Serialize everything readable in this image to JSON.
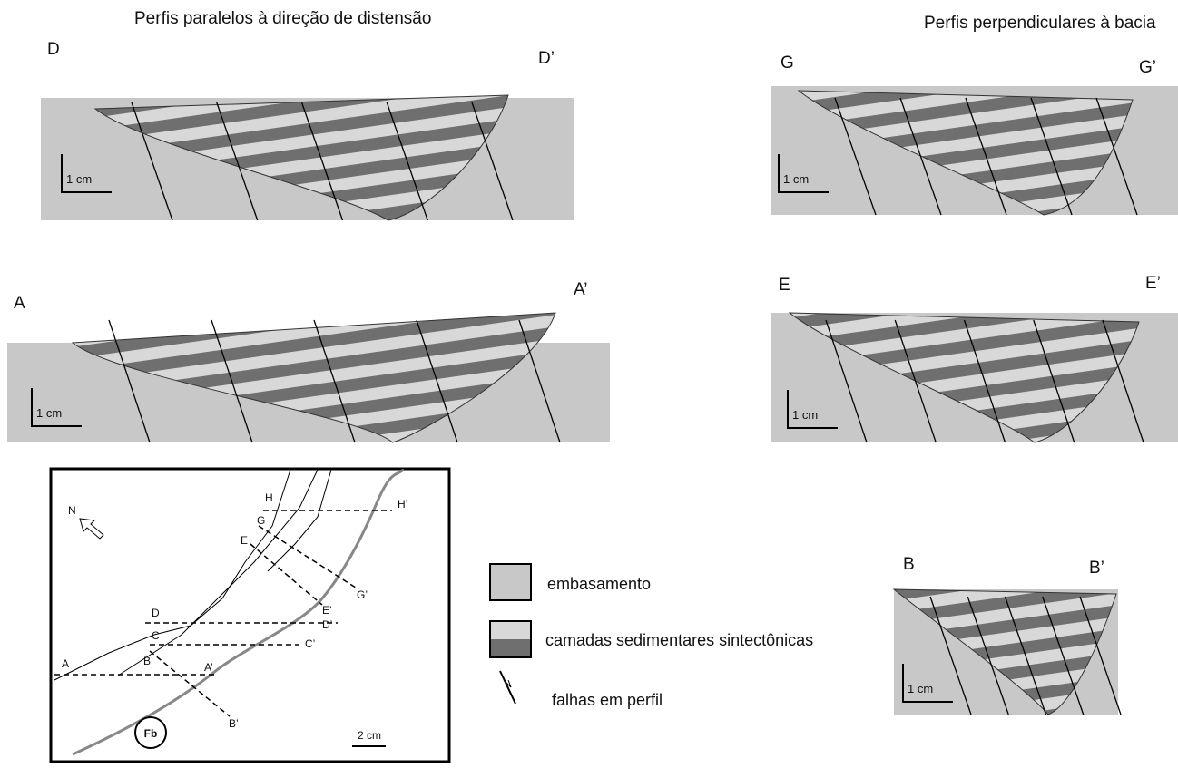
{
  "headings": {
    "left": "Perfis paralelos à direção de distensão",
    "right": "Perfis perpendiculares à bacia"
  },
  "profiles": [
    {
      "start": "D",
      "end": "D’",
      "scale": "1 cm"
    },
    {
      "start": "G",
      "end": "G’",
      "scale": "1 cm"
    },
    {
      "start": "A",
      "end": "A’",
      "scale": "1 cm"
    },
    {
      "start": "E",
      "end": "E’",
      "scale": "1 cm"
    },
    {
      "start": "B",
      "end": "B’",
      "scale": "1 cm"
    }
  ],
  "map": {
    "north": "N",
    "lines": [
      {
        "start": "H",
        "end": "H’"
      },
      {
        "start": "G",
        "end": "G’"
      },
      {
        "start": "E",
        "end": "E’"
      },
      {
        "start": "D",
        "end": "D’"
      },
      {
        "start": "C",
        "end": "C’"
      },
      {
        "start": "B",
        "end": "B’"
      },
      {
        "start": "A",
        "end": "A’"
      }
    ],
    "label": "Fb",
    "scale": "2 cm"
  },
  "legend": [
    "embasamento",
    "camadas sedimentares sintectônicas",
    "falhas em perfil"
  ]
}
